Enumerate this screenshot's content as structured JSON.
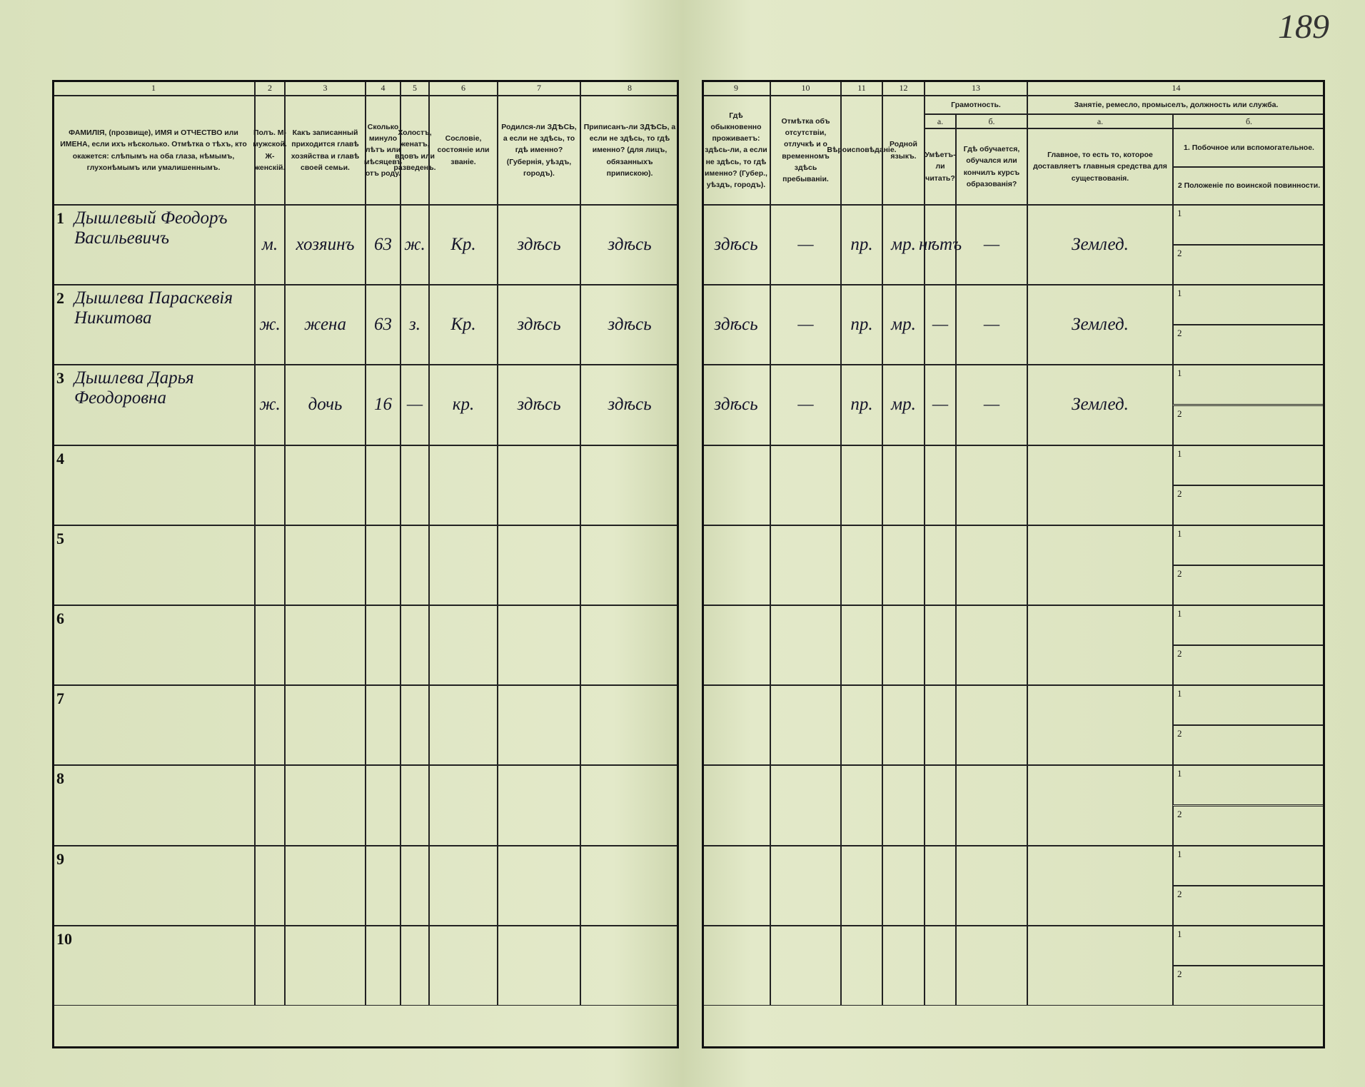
{
  "page_number": "189",
  "header": {
    "columns": [
      {
        "number": "1",
        "title": "ФАМИЛІЯ, (прозвище), ИМЯ и ОТЧЕСТВО или ИМЕНА, если ихъ нѣсколько. Отмѣтка о тѣхъ, кто окажется: слѣпымъ на оба глаза, нѣмымъ, глухонѣмымъ или умалишеннымъ."
      },
      {
        "number": "2",
        "title": "Полъ. М-мужской. Ж-женскій."
      },
      {
        "number": "3",
        "title": "Какъ записанный приходится главѣ хозяйства и главѣ своей семьи."
      },
      {
        "number": "4",
        "title": "Сколько минуло лѣтъ или мѣсяцевъ отъ роду."
      },
      {
        "number": "5",
        "title": "Холостъ, женатъ, вдовъ или разведенъ."
      },
      {
        "number": "6",
        "title": "Сословіе, состояніе или званіе."
      },
      {
        "number": "7",
        "title": "Родился-ли ЗДѢСЬ, а если не здѣсь, то гдѣ именно? (Губернія, уѣздъ, городъ)."
      },
      {
        "number": "8",
        "title": "Приписанъ-ли ЗДѢСЬ, а если не здѣсь, то гдѣ именно? (для лицъ, обязанныхъ припискою)."
      },
      {
        "number": "9",
        "title": "Гдѣ обыкновенно проживаетъ: здѣсь-ли, а если не здѣсь, то гдѣ именно? (Губер., уѣздъ, городъ)."
      },
      {
        "number": "10",
        "title": "Отмѣтка объ отсутствіи, отлучкѣ и о временномъ здѣсь пребываніи."
      },
      {
        "number": "11",
        "title": "Вѣроисповѣданіе."
      },
      {
        "number": "12",
        "title": "Родной языкъ."
      }
    ],
    "literacy": {
      "number": "13",
      "title": "Грамотность.",
      "a": {
        "letter": "а.",
        "title": "Умѣетъ-ли читать?"
      },
      "b": {
        "letter": "б.",
        "title": "Гдѣ обучается, обучался или кончилъ курсъ образованія?"
      }
    },
    "occupation": {
      "number": "14",
      "title": "Занятіе, ремесло, промыселъ, должность или служба.",
      "a": {
        "letter": "а.",
        "title": "Главное, то есть то, которое доставляетъ главныя средства для существованія."
      },
      "b": {
        "letter": "б.",
        "line1": "1. Побочное или вспомогательное.",
        "line2": "2 Положеніе по воинской повинности."
      }
    }
  },
  "sub_labels": [
    "1",
    "2"
  ],
  "rows": [
    {
      "number": "1",
      "name": "Дышлевый Феодоръ Васильевичъ",
      "sex": "м.",
      "relation": "хозяинъ",
      "age": 63,
      "marital": "ж.",
      "estate": "Кр.",
      "birthplace": "здѣсь",
      "registration": "здѣсь",
      "residence": "здѣсь",
      "absence": "—",
      "religion": "пр.",
      "language": "мр.",
      "literacy": "нѣтъ",
      "education": "—",
      "occupation": "Землед."
    },
    {
      "number": "2",
      "name": "Дышлева Параскевія Никитова",
      "sex": "ж.",
      "relation": "жена",
      "age": 63,
      "marital": "з.",
      "estate": "Кр.",
      "birthplace": "здѣсь",
      "registration": "здѣсь",
      "residence": "здѣсь",
      "absence": "—",
      "religion": "пр.",
      "language": "мр.",
      "literacy": "—",
      "education": "—",
      "occupation": "Землед."
    },
    {
      "number": "3",
      "name": "Дышлева Дарья Феодоровна",
      "sex": "ж.",
      "relation": "дочь",
      "age": 16,
      "marital": "—",
      "estate": "кр.",
      "birthplace": "здѣсь",
      "registration": "здѣсь",
      "residence": "здѣсь",
      "absence": "—",
      "religion": "пр.",
      "language": "мр.",
      "literacy": "—",
      "education": "—",
      "occupation": "Землед."
    },
    {
      "number": "4"
    },
    {
      "number": "5"
    },
    {
      "number": "6"
    },
    {
      "number": "7"
    },
    {
      "number": "8"
    },
    {
      "number": "9"
    },
    {
      "number": "10"
    }
  ]
}
